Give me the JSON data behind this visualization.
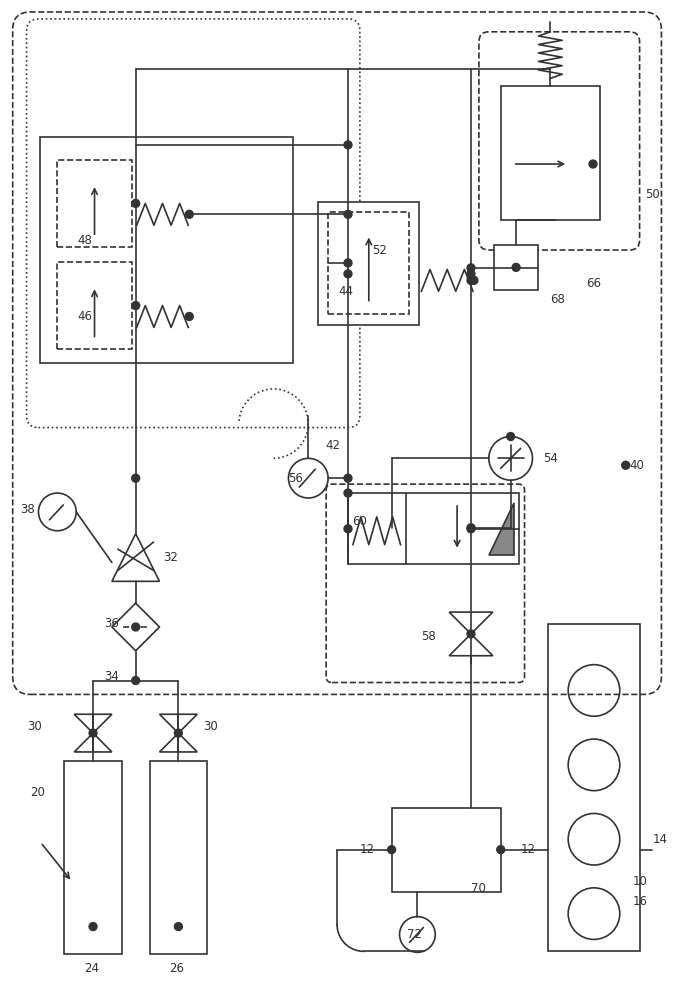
{
  "bg_color": "#ffffff",
  "line_color": "#333333",
  "lw": 1.2,
  "fig_w": 6.9,
  "fig_h": 10.0
}
